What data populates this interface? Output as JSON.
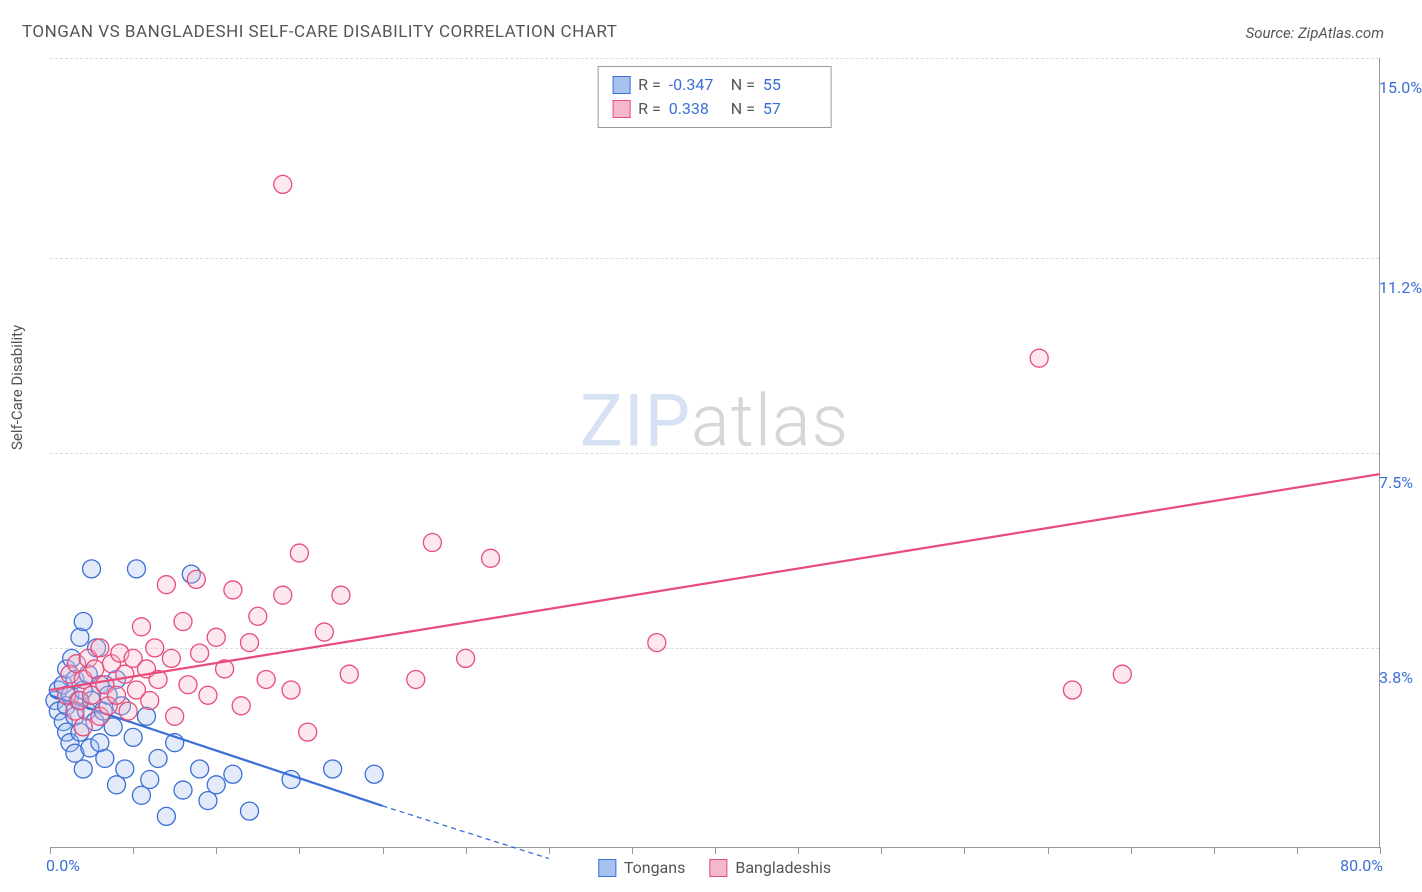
{
  "title": "TONGAN VS BANGLADESHI SELF-CARE DISABILITY CORRELATION CHART",
  "source_label": "Source: ZipAtlas.com",
  "ylabel": "Self-Care Disability",
  "watermark_zip": "ZIP",
  "watermark_atlas": "atlas",
  "chart": {
    "type": "scatter",
    "background_color": "#ffffff",
    "grid_color": "#dcdcdc",
    "grid_dash": "4,3",
    "axis_color": "#999999",
    "tick_label_color": "#3b6fd6",
    "xlim": [
      0.0,
      80.0
    ],
    "ylim": [
      0.0,
      15.0
    ],
    "x_tick_step": 5.0,
    "y_gridlines": [
      3.8,
      7.5,
      11.2,
      15.0
    ],
    "y_tick_labels": [
      "3.8%",
      "7.5%",
      "11.2%",
      "15.0%"
    ],
    "x_min_label": "0.0%",
    "x_max_label": "80.0%",
    "marker_radius": 9,
    "marker_stroke_width": 1.3,
    "marker_fill_opacity": 0.32,
    "trend_line_width": 2.2,
    "series": [
      {
        "name": "Tongans",
        "color": "#3b6fd6",
        "fill": "#a8c2ef",
        "R": "-0.347",
        "N": "55",
        "trend": {
          "x0": 0.0,
          "y0": 2.9,
          "x1": 20.0,
          "y1": 0.8,
          "extrapolate_x": 30.0,
          "extrapolate_y": -0.2
        },
        "points": [
          [
            0.3,
            2.8
          ],
          [
            0.5,
            2.6
          ],
          [
            0.5,
            3.0
          ],
          [
            0.8,
            2.4
          ],
          [
            0.8,
            3.1
          ],
          [
            1.0,
            2.2
          ],
          [
            1.0,
            2.7
          ],
          [
            1.0,
            3.4
          ],
          [
            1.2,
            2.0
          ],
          [
            1.2,
            2.9
          ],
          [
            1.3,
            3.6
          ],
          [
            1.5,
            1.8
          ],
          [
            1.5,
            2.5
          ],
          [
            1.5,
            3.2
          ],
          [
            1.7,
            2.8
          ],
          [
            1.8,
            4.0
          ],
          [
            1.8,
            2.2
          ],
          [
            2.0,
            3.0
          ],
          [
            2.0,
            1.5
          ],
          [
            2.0,
            4.3
          ],
          [
            2.2,
            2.6
          ],
          [
            2.3,
            3.3
          ],
          [
            2.4,
            1.9
          ],
          [
            2.5,
            2.8
          ],
          [
            2.5,
            5.3
          ],
          [
            2.7,
            2.4
          ],
          [
            2.8,
            3.8
          ],
          [
            3.0,
            2.0
          ],
          [
            3.0,
            3.1
          ],
          [
            3.2,
            2.6
          ],
          [
            3.3,
            1.7
          ],
          [
            3.5,
            2.9
          ],
          [
            3.8,
            2.3
          ],
          [
            4.0,
            3.2
          ],
          [
            4.0,
            1.2
          ],
          [
            4.3,
            2.7
          ],
          [
            4.5,
            1.5
          ],
          [
            5.0,
            2.1
          ],
          [
            5.2,
            5.3
          ],
          [
            5.5,
            1.0
          ],
          [
            5.8,
            2.5
          ],
          [
            6.0,
            1.3
          ],
          [
            6.5,
            1.7
          ],
          [
            7.0,
            0.6
          ],
          [
            7.5,
            2.0
          ],
          [
            8.0,
            1.1
          ],
          [
            8.5,
            5.2
          ],
          [
            9.0,
            1.5
          ],
          [
            9.5,
            0.9
          ],
          [
            10.0,
            1.2
          ],
          [
            11.0,
            1.4
          ],
          [
            12.0,
            0.7
          ],
          [
            14.5,
            1.3
          ],
          [
            17.0,
            1.5
          ],
          [
            19.5,
            1.4
          ]
        ]
      },
      {
        "name": "Bangladeshis",
        "color": "#e84c7a",
        "fill": "#f5b8cb",
        "R": "0.338",
        "N": "57",
        "trend": {
          "x0": 0.0,
          "y0": 3.0,
          "x1": 80.0,
          "y1": 7.1
        },
        "points": [
          [
            1.0,
            2.9
          ],
          [
            1.2,
            3.3
          ],
          [
            1.5,
            2.6
          ],
          [
            1.6,
            3.5
          ],
          [
            1.8,
            2.8
          ],
          [
            2.0,
            3.2
          ],
          [
            2.0,
            2.3
          ],
          [
            2.3,
            3.6
          ],
          [
            2.5,
            2.9
          ],
          [
            2.7,
            3.4
          ],
          [
            3.0,
            2.5
          ],
          [
            3.0,
            3.8
          ],
          [
            3.3,
            3.1
          ],
          [
            3.5,
            2.7
          ],
          [
            3.7,
            3.5
          ],
          [
            4.0,
            2.9
          ],
          [
            4.2,
            3.7
          ],
          [
            4.5,
            3.3
          ],
          [
            4.7,
            2.6
          ],
          [
            5.0,
            3.6
          ],
          [
            5.2,
            3.0
          ],
          [
            5.5,
            4.2
          ],
          [
            5.8,
            3.4
          ],
          [
            6.0,
            2.8
          ],
          [
            6.3,
            3.8
          ],
          [
            6.5,
            3.2
          ],
          [
            7.0,
            5.0
          ],
          [
            7.3,
            3.6
          ],
          [
            7.5,
            2.5
          ],
          [
            8.0,
            4.3
          ],
          [
            8.3,
            3.1
          ],
          [
            8.8,
            5.1
          ],
          [
            9.0,
            3.7
          ],
          [
            9.5,
            2.9
          ],
          [
            10.0,
            4.0
          ],
          [
            10.5,
            3.4
          ],
          [
            11.0,
            4.9
          ],
          [
            11.5,
            2.7
          ],
          [
            12.0,
            3.9
          ],
          [
            12.5,
            4.4
          ],
          [
            13.0,
            3.2
          ],
          [
            14.0,
            4.8
          ],
          [
            14.5,
            3.0
          ],
          [
            15.0,
            5.6
          ],
          [
            15.5,
            2.2
          ],
          [
            16.5,
            4.1
          ],
          [
            17.5,
            4.8
          ],
          [
            18.0,
            3.3
          ],
          [
            14.0,
            12.6
          ],
          [
            22.0,
            3.2
          ],
          [
            23.0,
            5.8
          ],
          [
            25.0,
            3.6
          ],
          [
            26.5,
            5.5
          ],
          [
            36.5,
            3.9
          ],
          [
            59.5,
            9.3
          ],
          [
            61.5,
            3.0
          ],
          [
            64.5,
            3.3
          ]
        ]
      }
    ],
    "legend_top": {
      "border_color": "#999999",
      "background": "#ffffff"
    },
    "legend_bottom_labels": {
      "tongans": "Tongans",
      "bangladeshis": "Bangladeshis"
    }
  }
}
